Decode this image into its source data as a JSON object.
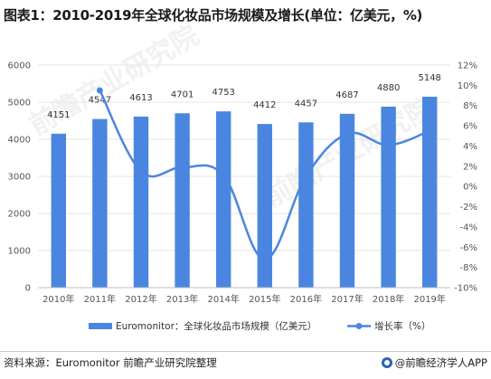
{
  "title": "图表1：2010-2019年全球化妆品市场规模及增长(单位：亿美元，%)",
  "source": "资料来源：Euromonitor 前瞻产业研究院整理",
  "brand": "@前瞻经济学人APP",
  "watermark": "前瞻产业研究院",
  "colors": {
    "bar": "#4a86e0",
    "line": "#4a86e0",
    "grid": "#e6e6e6"
  },
  "chart_data": {
    "type": "bar+line",
    "categories": [
      "2010年",
      "2011年",
      "2012年",
      "2013年",
      "2014年",
      "2015年",
      "2016年",
      "2017年",
      "2018年",
      "2019年"
    ],
    "series": [
      {
        "name": "Euromonitor：全球化妆品市场规模（亿美元）",
        "type": "bar",
        "axis": "left",
        "values": [
          4151,
          4547,
          4613,
          4701,
          4753,
          4412,
          4457,
          4687,
          4880,
          5148
        ]
      },
      {
        "name": "增长率（%）",
        "type": "line",
        "axis": "right",
        "values": [
          null,
          9.5,
          1.5,
          1.9,
          1.1,
          -7.2,
          1.0,
          5.2,
          4.1,
          5.5
        ]
      }
    ],
    "ylim_left": [
      0,
      6000
    ],
    "yticks_left": [
      "0",
      "1000",
      "2000",
      "3000",
      "4000",
      "5000",
      "6000"
    ],
    "ylim_right": [
      -10,
      12
    ],
    "yticks_right": [
      "-10%",
      "-8%",
      "-6%",
      "-4%",
      "-2%",
      "0%",
      "2%",
      "4%",
      "6%",
      "8%",
      "10%",
      "12%"
    ],
    "legend_position": "bottom",
    "data_labels": true
  }
}
